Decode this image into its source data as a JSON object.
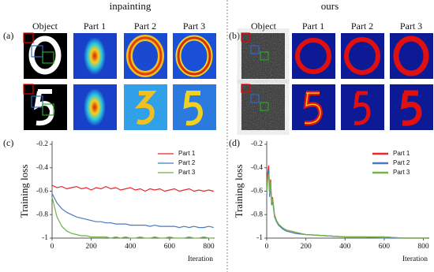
{
  "titles": {
    "left": "inpainting",
    "right": "ours"
  },
  "panels": [
    "(a)",
    "(b)",
    "(c)",
    "(d)"
  ],
  "columns_left": [
    "Object",
    "Part 1",
    "Part 2",
    "Part 3"
  ],
  "columns_right": [
    "Object",
    "Part 1",
    "Part 2",
    "Part 3"
  ],
  "chart_data": [
    {
      "type": "line",
      "xlabel": "Iteration",
      "ylabel": "Training loss",
      "legend": "upper right",
      "xlim": [
        0,
        830
      ],
      "ylim": [
        -1,
        -0.2
      ],
      "xticks": [
        0,
        200,
        400,
        600,
        800
      ],
      "yticks": [
        -1,
        -0.8,
        -0.6,
        -0.4,
        -0.2
      ],
      "x": [
        0,
        25,
        50,
        75,
        100,
        125,
        150,
        175,
        200,
        225,
        250,
        275,
        300,
        325,
        350,
        375,
        400,
        425,
        450,
        475,
        500,
        525,
        550,
        575,
        600,
        625,
        650,
        675,
        700,
        725,
        750,
        775,
        800,
        825
      ],
      "series": [
        {
          "name": "Part 1",
          "color": "#e8262b",
          "values": [
            -0.55,
            -0.57,
            -0.56,
            -0.58,
            -0.57,
            -0.56,
            -0.58,
            -0.57,
            -0.59,
            -0.57,
            -0.58,
            -0.56,
            -0.58,
            -0.57,
            -0.59,
            -0.58,
            -0.57,
            -0.59,
            -0.58,
            -0.6,
            -0.58,
            -0.59,
            -0.58,
            -0.6,
            -0.59,
            -0.58,
            -0.6,
            -0.59,
            -0.58,
            -0.6,
            -0.59,
            -0.6,
            -0.59,
            -0.6
          ]
        },
        {
          "name": "Part 2",
          "color": "#4a78c2",
          "values": [
            -0.62,
            -0.7,
            -0.75,
            -0.78,
            -0.8,
            -0.82,
            -0.83,
            -0.84,
            -0.85,
            -0.86,
            -0.86,
            -0.87,
            -0.87,
            -0.88,
            -0.88,
            -0.88,
            -0.89,
            -0.89,
            -0.89,
            -0.89,
            -0.9,
            -0.89,
            -0.9,
            -0.9,
            -0.9,
            -0.9,
            -0.91,
            -0.9,
            -0.91,
            -0.9,
            -0.91,
            -0.91,
            -0.9,
            -0.91
          ]
        },
        {
          "name": "Part 3",
          "color": "#72b443",
          "values": [
            -0.65,
            -0.82,
            -0.9,
            -0.94,
            -0.96,
            -0.97,
            -0.98,
            -0.98,
            -0.99,
            -0.99,
            -0.99,
            -0.99,
            -1,
            -0.99,
            -1,
            -0.99,
            -1,
            -1,
            -0.99,
            -1,
            -1,
            -0.99,
            -1,
            -1,
            -0.99,
            -1,
            -1,
            -1,
            -0.99,
            -1,
            -1,
            -0.99,
            -1,
            -1
          ]
        }
      ]
    },
    {
      "type": "line",
      "xlabel": "Iteration",
      "ylabel": "Training loss",
      "legend": "upper right",
      "xlim": [
        0,
        830
      ],
      "ylim": [
        -1,
        -0.2
      ],
      "xticks": [
        0,
        200,
        400,
        600,
        800
      ],
      "yticks": [
        -1,
        -0.8,
        -0.6,
        -0.4,
        -0.2
      ],
      "x": [
        0,
        5,
        10,
        15,
        20,
        25,
        30,
        40,
        50,
        60,
        80,
        100,
        150,
        200,
        300,
        400,
        500,
        600,
        700,
        800,
        830
      ],
      "series": [
        {
          "name": "Part 1",
          "color": "#e8262b",
          "values": [
            -0.6,
            -0.45,
            -0.38,
            -0.6,
            -0.5,
            -0.7,
            -0.65,
            -0.8,
            -0.85,
            -0.88,
            -0.92,
            -0.94,
            -0.96,
            -0.97,
            -0.98,
            -0.99,
            -0.99,
            -0.99,
            -1,
            -1,
            -1
          ]
        },
        {
          "name": "Part 2",
          "color": "#4a78c2",
          "values": [
            -0.65,
            -0.5,
            -0.42,
            -0.65,
            -0.55,
            -0.72,
            -0.68,
            -0.82,
            -0.86,
            -0.89,
            -0.92,
            -0.94,
            -0.96,
            -0.97,
            -0.98,
            -0.99,
            -0.99,
            -1,
            -1,
            -1,
            -1
          ]
        },
        {
          "name": "Part 3",
          "color": "#72b443",
          "values": [
            -0.62,
            -0.48,
            -0.45,
            -0.62,
            -0.52,
            -0.7,
            -0.66,
            -0.81,
            -0.85,
            -0.88,
            -0.91,
            -0.93,
            -0.95,
            -0.97,
            -0.98,
            -0.99,
            -0.99,
            -0.99,
            -1,
            -1,
            -1
          ]
        }
      ]
    }
  ]
}
